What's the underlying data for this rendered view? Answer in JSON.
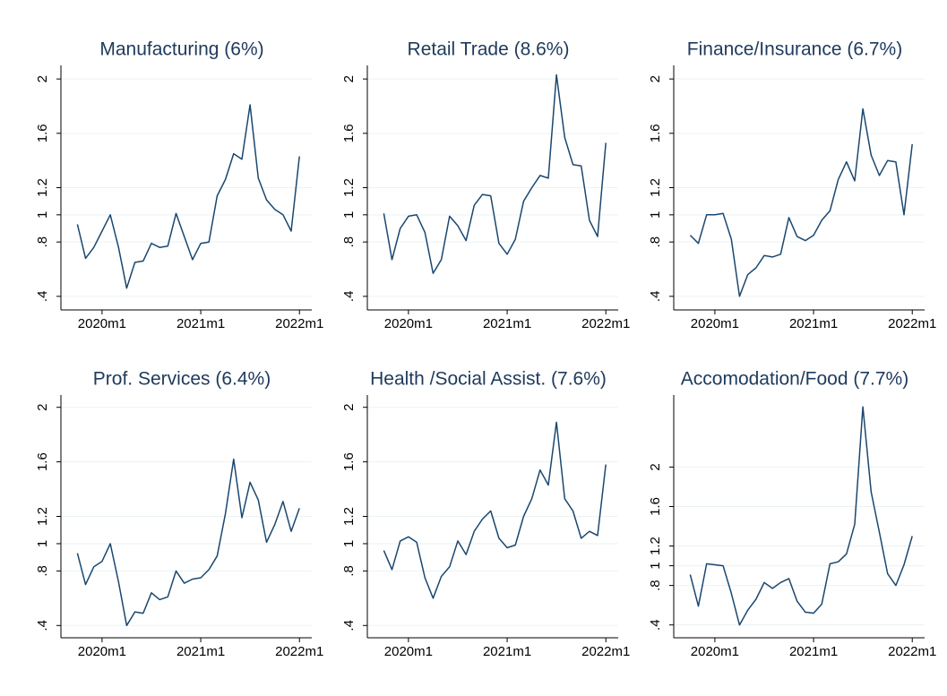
{
  "chart_data": [
    {
      "type": "line",
      "title": "Manufacturing (6%)",
      "color": "#1a476f",
      "grid": true,
      "x": [
        717,
        718,
        719,
        720,
        721,
        722,
        723,
        724,
        725,
        726,
        727,
        728,
        729,
        730,
        731,
        732,
        733,
        734,
        735,
        736,
        737,
        738,
        739,
        740,
        741,
        742,
        743,
        744
      ],
      "values": [
        0.93,
        0.68,
        0.76,
        0.88,
        1.0,
        0.76,
        0.46,
        0.65,
        0.66,
        0.79,
        0.76,
        0.77,
        1.01,
        0.84,
        0.67,
        0.79,
        0.8,
        1.14,
        1.26,
        1.45,
        1.41,
        1.81,
        1.27,
        1.11,
        1.04,
        1.0,
        0.88,
        1.43
      ],
      "xlim": [
        715,
        745.5
      ],
      "xticks": [
        {
          "value": 720,
          "label": "2020m1"
        },
        {
          "value": 732,
          "label": "2021m1"
        },
        {
          "value": 744,
          "label": "2022m1"
        }
      ],
      "ylim": [
        0.3,
        2.1
      ],
      "yticks": [
        {
          "value": 0.4,
          "label": ".4"
        },
        {
          "value": 0.8,
          "label": ".8"
        },
        1,
        1.2,
        1.6,
        2
      ]
    },
    {
      "type": "line",
      "title": "Retail Trade (8.6%)",
      "color": "#1a476f",
      "grid": true,
      "x": [
        717,
        718,
        719,
        720,
        721,
        722,
        723,
        724,
        725,
        726,
        727,
        728,
        729,
        730,
        731,
        732,
        733,
        734,
        735,
        736,
        737,
        738,
        739,
        740,
        741,
        742,
        743,
        744
      ],
      "values": [
        1.01,
        0.67,
        0.9,
        0.99,
        1.0,
        0.87,
        0.57,
        0.67,
        0.99,
        0.92,
        0.81,
        1.07,
        1.15,
        1.14,
        0.79,
        0.71,
        0.82,
        1.1,
        1.2,
        1.29,
        1.27,
        2.03,
        1.57,
        1.37,
        1.36,
        0.96,
        0.84,
        1.53
      ],
      "xlim": [
        715,
        745.5
      ],
      "xticks": [
        {
          "value": 720,
          "label": "2020m1"
        },
        {
          "value": 732,
          "label": "2021m1"
        },
        {
          "value": 744,
          "label": "2022m1"
        }
      ],
      "ylim": [
        0.3,
        2.1
      ],
      "yticks": [
        {
          "value": 0.4,
          "label": ".4"
        },
        {
          "value": 0.8,
          "label": ".8"
        },
        1,
        1.2,
        1.6,
        2
      ]
    },
    {
      "type": "line",
      "title": "Finance/Insurance (6.7%)",
      "color": "#1a476f",
      "grid": true,
      "x": [
        717,
        718,
        719,
        720,
        721,
        722,
        723,
        724,
        725,
        726,
        727,
        728,
        729,
        730,
        731,
        732,
        733,
        734,
        735,
        736,
        737,
        738,
        739,
        740,
        741,
        742,
        743,
        744
      ],
      "values": [
        0.85,
        0.79,
        1.0,
        1.0,
        1.01,
        0.82,
        0.4,
        0.56,
        0.61,
        0.7,
        0.69,
        0.71,
        0.98,
        0.84,
        0.81,
        0.85,
        0.96,
        1.03,
        1.26,
        1.39,
        1.25,
        1.78,
        1.44,
        1.29,
        1.4,
        1.39,
        1.0,
        1.52
      ],
      "xlim": [
        715,
        745.5
      ],
      "xticks": [
        {
          "value": 720,
          "label": "2020m1"
        },
        {
          "value": 732,
          "label": "2021m1"
        },
        {
          "value": 744,
          "label": "2022m1"
        }
      ],
      "ylim": [
        0.3,
        2.1
      ],
      "yticks": [
        {
          "value": 0.4,
          "label": ".4"
        },
        {
          "value": 0.8,
          "label": ".8"
        },
        1,
        1.2,
        1.6,
        2
      ]
    },
    {
      "type": "line",
      "title": "Prof. Services (6.4%)",
      "color": "#1a476f",
      "grid": true,
      "x": [
        717,
        718,
        719,
        720,
        721,
        722,
        723,
        724,
        725,
        726,
        727,
        728,
        729,
        730,
        731,
        732,
        733,
        734,
        735,
        736,
        737,
        738,
        739,
        740,
        741,
        742,
        743,
        744
      ],
      "values": [
        0.93,
        0.7,
        0.83,
        0.87,
        1.0,
        0.72,
        0.4,
        0.5,
        0.49,
        0.64,
        0.59,
        0.61,
        0.8,
        0.71,
        0.74,
        0.75,
        0.81,
        0.91,
        1.22,
        1.62,
        1.19,
        1.45,
        1.32,
        1.01,
        1.14,
        1.31,
        1.09,
        1.26
      ],
      "xlim": [
        715,
        745.5
      ],
      "xticks": [
        {
          "value": 720,
          "label": "2020m1"
        },
        {
          "value": 732,
          "label": "2021m1"
        },
        {
          "value": 744,
          "label": "2022m1"
        }
      ],
      "ylim": [
        0.31,
        2.09
      ],
      "yticks": [
        {
          "value": 0.4,
          "label": ".4"
        },
        {
          "value": 0.8,
          "label": ".8"
        },
        1,
        1.2,
        1.6,
        2
      ]
    },
    {
      "type": "line",
      "title": "Health /Social Assist. (7.6%)",
      "color": "#1a476f",
      "grid": true,
      "x": [
        717,
        718,
        719,
        720,
        721,
        722,
        723,
        724,
        725,
        726,
        727,
        728,
        729,
        730,
        731,
        732,
        733,
        734,
        735,
        736,
        737,
        738,
        739,
        740,
        741,
        742,
        743,
        744
      ],
      "values": [
        0.95,
        0.81,
        1.02,
        1.05,
        1.01,
        0.75,
        0.6,
        0.76,
        0.83,
        1.02,
        0.92,
        1.09,
        1.18,
        1.24,
        1.04,
        0.97,
        0.99,
        1.2,
        1.33,
        1.54,
        1.43,
        1.89,
        1.33,
        1.24,
        1.04,
        1.09,
        1.06,
        1.58
      ],
      "xlim": [
        715,
        745.5
      ],
      "xticks": [
        {
          "value": 720,
          "label": "2020m1"
        },
        {
          "value": 732,
          "label": "2021m1"
        },
        {
          "value": 744,
          "label": "2022m1"
        }
      ],
      "ylim": [
        0.31,
        2.09
      ],
      "yticks": [
        {
          "value": 0.4,
          "label": ".4"
        },
        {
          "value": 0.8,
          "label": ".8"
        },
        1,
        1.2,
        1.6,
        2
      ]
    },
    {
      "type": "line",
      "title": "Accomodation/Food (7.7%)",
      "color": "#1a476f",
      "grid": true,
      "x": [
        717,
        718,
        719,
        720,
        721,
        722,
        723,
        724,
        725,
        726,
        727,
        728,
        729,
        730,
        731,
        732,
        733,
        734,
        735,
        736,
        737,
        738,
        739,
        740,
        741,
        742,
        743,
        744
      ],
      "values": [
        0.91,
        0.59,
        1.02,
        1.01,
        1.0,
        0.72,
        0.4,
        0.55,
        0.66,
        0.83,
        0.77,
        0.83,
        0.87,
        0.64,
        0.53,
        0.52,
        0.61,
        1.02,
        1.04,
        1.12,
        1.42,
        2.61,
        1.75,
        1.34,
        0.92,
        0.8,
        1.01,
        1.3
      ],
      "xlim": [
        715,
        745.5
      ],
      "xticks": [
        {
          "value": 720,
          "label": "2020m1"
        },
        {
          "value": 732,
          "label": "2021m1"
        },
        {
          "value": 744,
          "label": "2022m1"
        }
      ],
      "ylim": [
        0.27,
        2.73
      ],
      "yticks": [
        {
          "value": 0.4,
          "label": ".4"
        },
        {
          "value": 0.8,
          "label": ".8"
        },
        1,
        1.2,
        1.6,
        2
      ]
    }
  ]
}
